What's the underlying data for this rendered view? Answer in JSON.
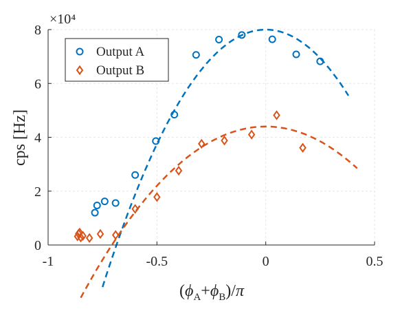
{
  "chart_data": {
    "type": "scatter",
    "title": "",
    "xlabel": "(ϕA+ϕB)/π",
    "ylabel": "cps [Hz]",
    "xlim": [
      -1,
      0.5
    ],
    "ylim": [
      0,
      80000
    ],
    "x_ticks": [
      -1,
      -0.5,
      0,
      0.5
    ],
    "x_tick_labels": [
      "-1",
      "-0.5",
      "0",
      "0.5"
    ],
    "y_ticks": [
      0,
      20000,
      40000,
      60000,
      80000
    ],
    "y_tick_labels": [
      "0",
      "2",
      "4",
      "6",
      "8"
    ],
    "y_exponent_label": "×10⁴",
    "grid": true,
    "legend_position": "top-left",
    "series": [
      {
        "name": "Output A",
        "marker": "circle",
        "color": "#0072BD",
        "points": [
          [
            -0.785,
            12000
          ],
          [
            -0.775,
            14700
          ],
          [
            -0.74,
            16200
          ],
          [
            -0.69,
            15600
          ],
          [
            -0.6,
            26000
          ],
          [
            -0.505,
            38600
          ],
          [
            -0.42,
            48400
          ],
          [
            -0.32,
            70600
          ],
          [
            -0.215,
            76300
          ],
          [
            -0.11,
            78000
          ],
          [
            0.03,
            76400
          ],
          [
            0.14,
            70800
          ],
          [
            0.25,
            68200
          ]
        ],
        "fit_x": [
          -0.75,
          0.38
        ],
        "fit_peak": [
          0.0,
          80000
        ],
        "fit_curvature": 170000
      },
      {
        "name": "Output B",
        "marker": "diamond",
        "color": "#D95319",
        "points": [
          [
            -0.865,
            3200
          ],
          [
            -0.86,
            4200
          ],
          [
            -0.855,
            4600
          ],
          [
            -0.85,
            2800
          ],
          [
            -0.84,
            3400
          ],
          [
            -0.81,
            2600
          ],
          [
            -0.76,
            4100
          ],
          [
            -0.69,
            3700
          ],
          [
            -0.6,
            13400
          ],
          [
            -0.5,
            17800
          ],
          [
            -0.4,
            27600
          ],
          [
            -0.295,
            37600
          ],
          [
            -0.19,
            38800
          ],
          [
            -0.065,
            41000
          ],
          [
            0.05,
            48200
          ],
          [
            0.17,
            36100
          ]
        ],
        "fit_x": [
          -0.85,
          0.42
        ],
        "fit_peak": [
          0.0,
          44000
        ],
        "fit_curvature": 88000
      }
    ]
  }
}
